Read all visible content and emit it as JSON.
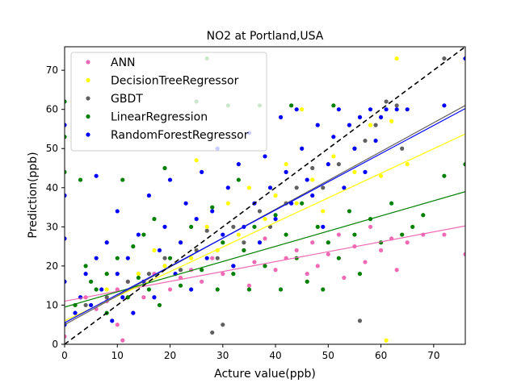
{
  "chart_data": {
    "type": "scatter",
    "title": "NO2 at Portland,USA",
    "xlabel": "Acture value(ppb)",
    "ylabel": "Prediction(ppb)",
    "xlim": [
      0,
      76
    ],
    "ylim": [
      0,
      76
    ],
    "xticks": [
      0,
      10,
      20,
      30,
      40,
      50,
      60,
      70
    ],
    "yticks": [
      0,
      10,
      20,
      30,
      40,
      50,
      60,
      70
    ],
    "grid": false,
    "legend_position": "top-left",
    "identity_line": {
      "from": [
        0,
        0
      ],
      "to": [
        76,
        76
      ],
      "color": "#000000",
      "style": "dashed"
    },
    "series": [
      {
        "name": "ANN",
        "color": "#f069b4",
        "fit": {
          "intercept": 11.0,
          "slope": 0.253
        },
        "points": [
          [
            0,
            2
          ],
          [
            2,
            10
          ],
          [
            4,
            12
          ],
          [
            6,
            9
          ],
          [
            8,
            11
          ],
          [
            10,
            5
          ],
          [
            10,
            14
          ],
          [
            11,
            1
          ],
          [
            12,
            16
          ],
          [
            13,
            8
          ],
          [
            15,
            12
          ],
          [
            17,
            18
          ],
          [
            19,
            20
          ],
          [
            20,
            14
          ],
          [
            22,
            17
          ],
          [
            24,
            19
          ],
          [
            26,
            16
          ],
          [
            28,
            22
          ],
          [
            30,
            18
          ],
          [
            32,
            20
          ],
          [
            34,
            24
          ],
          [
            35,
            15
          ],
          [
            36,
            21
          ],
          [
            38,
            27
          ],
          [
            40,
            19
          ],
          [
            42,
            22
          ],
          [
            44,
            24
          ],
          [
            46,
            18
          ],
          [
            47,
            26
          ],
          [
            48,
            20
          ],
          [
            50,
            23
          ],
          [
            52,
            28
          ],
          [
            53,
            17
          ],
          [
            55,
            25
          ],
          [
            57,
            21
          ],
          [
            58,
            30
          ],
          [
            60,
            24
          ],
          [
            62,
            27
          ],
          [
            63,
            19
          ],
          [
            65,
            26
          ],
          [
            68,
            28
          ],
          [
            72,
            28
          ],
          [
            76,
            23
          ]
        ]
      },
      {
        "name": "DecisionTreeRegressor",
        "color": "#ffff00",
        "fit": {
          "intercept": 6.0,
          "slope": 0.628
        },
        "points": [
          [
            2,
            8
          ],
          [
            5,
            10
          ],
          [
            8,
            14
          ],
          [
            12,
            12
          ],
          [
            14,
            18
          ],
          [
            17,
            24
          ],
          [
            19,
            20
          ],
          [
            22,
            26
          ],
          [
            24,
            22
          ],
          [
            25,
            47
          ],
          [
            27,
            30
          ],
          [
            29,
            24
          ],
          [
            31,
            36
          ],
          [
            33,
            28
          ],
          [
            35,
            40
          ],
          [
            38,
            32
          ],
          [
            40,
            38
          ],
          [
            42,
            46
          ],
          [
            44,
            36
          ],
          [
            45,
            60
          ],
          [
            47,
            42
          ],
          [
            49,
            34
          ],
          [
            51,
            48
          ],
          [
            53,
            40
          ],
          [
            55,
            44
          ],
          [
            58,
            56
          ],
          [
            60,
            43
          ],
          [
            61,
            1
          ],
          [
            62,
            57
          ],
          [
            63,
            73
          ],
          [
            65,
            46
          ]
        ]
      },
      {
        "name": "GBDT",
        "color": "#606060",
        "fit": {
          "intercept": 5.0,
          "slope": 0.737
        },
        "points": [
          [
            4,
            10
          ],
          [
            8,
            12
          ],
          [
            12,
            16
          ],
          [
            16,
            18
          ],
          [
            19,
            22
          ],
          [
            22,
            19
          ],
          [
            25,
            24
          ],
          [
            27,
            29
          ],
          [
            28,
            3
          ],
          [
            29,
            22
          ],
          [
            30,
            5
          ],
          [
            32,
            30
          ],
          [
            34,
            26
          ],
          [
            37,
            34
          ],
          [
            39,
            30
          ],
          [
            42,
            36
          ],
          [
            44,
            40
          ],
          [
            47,
            45
          ],
          [
            49,
            40
          ],
          [
            52,
            46
          ],
          [
            55,
            50
          ],
          [
            56,
            6
          ],
          [
            57,
            52
          ],
          [
            59,
            56
          ],
          [
            61,
            62
          ],
          [
            63,
            61
          ],
          [
            64,
            50
          ],
          [
            72,
            73
          ]
        ]
      },
      {
        "name": "LinearRegression",
        "color": "#008000",
        "fit": {
          "intercept": 9.5,
          "slope": 0.388
        },
        "points": [
          [
            0,
            44
          ],
          [
            0,
            53
          ],
          [
            0,
            62
          ],
          [
            2,
            10
          ],
          [
            3,
            42
          ],
          [
            4,
            20
          ],
          [
            5,
            16
          ],
          [
            6,
            14
          ],
          [
            8,
            8
          ],
          [
            8,
            18
          ],
          [
            10,
            22
          ],
          [
            11,
            42
          ],
          [
            12,
            12
          ],
          [
            13,
            25
          ],
          [
            14,
            17
          ],
          [
            15,
            28
          ],
          [
            16,
            14
          ],
          [
            17,
            32
          ],
          [
            18,
            10
          ],
          [
            19,
            45
          ],
          [
            20,
            22
          ],
          [
            22,
            15
          ],
          [
            24,
            30
          ],
          [
            25,
            62
          ],
          [
            26,
            19
          ],
          [
            27,
            73
          ],
          [
            28,
            35
          ],
          [
            29,
            14
          ],
          [
            30,
            26
          ],
          [
            31,
            61
          ],
          [
            32,
            18
          ],
          [
            33,
            42
          ],
          [
            34,
            24
          ],
          [
            35,
            14
          ],
          [
            36,
            30
          ],
          [
            37,
            61
          ],
          [
            38,
            20
          ],
          [
            40,
            33
          ],
          [
            41,
            14
          ],
          [
            42,
            28
          ],
          [
            43,
            61
          ],
          [
            44,
            22
          ],
          [
            45,
            36
          ],
          [
            46,
            16
          ],
          [
            48,
            30
          ],
          [
            49,
            14
          ],
          [
            50,
            26
          ],
          [
            51,
            61
          ],
          [
            52,
            22
          ],
          [
            54,
            34
          ],
          [
            55,
            28
          ],
          [
            56,
            18
          ],
          [
            58,
            32
          ],
          [
            60,
            26
          ],
          [
            62,
            36
          ],
          [
            64,
            28
          ],
          [
            66,
            30
          ],
          [
            68,
            33
          ],
          [
            72,
            43
          ],
          [
            76,
            46
          ]
        ]
      },
      {
        "name": "RandomForestRegressor",
        "color": "#0000ff",
        "fit": {
          "intercept": 5.5,
          "slope": 0.72
        },
        "points": [
          [
            0,
            5
          ],
          [
            0,
            16
          ],
          [
            0,
            27
          ],
          [
            0,
            38
          ],
          [
            0,
            56
          ],
          [
            2,
            8
          ],
          [
            3,
            12
          ],
          [
            4,
            18
          ],
          [
            5,
            10
          ],
          [
            6,
            22
          ],
          [
            6,
            43
          ],
          [
            7,
            14
          ],
          [
            8,
            26
          ],
          [
            9,
            6
          ],
          [
            10,
            18
          ],
          [
            10,
            34
          ],
          [
            11,
            12
          ],
          [
            12,
            22
          ],
          [
            13,
            8
          ],
          [
            14,
            28
          ],
          [
            15,
            16
          ],
          [
            16,
            38
          ],
          [
            17,
            12
          ],
          [
            18,
            24
          ],
          [
            19,
            30
          ],
          [
            20,
            42
          ],
          [
            21,
            18
          ],
          [
            22,
            26
          ],
          [
            23,
            36
          ],
          [
            24,
            14
          ],
          [
            25,
            32
          ],
          [
            26,
            44
          ],
          [
            27,
            22
          ],
          [
            28,
            34
          ],
          [
            29,
            50
          ],
          [
            30,
            28
          ],
          [
            31,
            40
          ],
          [
            32,
            20
          ],
          [
            33,
            46
          ],
          [
            34,
            30
          ],
          [
            35,
            54
          ],
          [
            36,
            36
          ],
          [
            37,
            26
          ],
          [
            38,
            48
          ],
          [
            39,
            40
          ],
          [
            40,
            32
          ],
          [
            41,
            58
          ],
          [
            42,
            44
          ],
          [
            43,
            36
          ],
          [
            44,
            60
          ],
          [
            45,
            50
          ],
          [
            46,
            42
          ],
          [
            47,
            38
          ],
          [
            48,
            56
          ],
          [
            49,
            30
          ],
          [
            50,
            46
          ],
          [
            51,
            53
          ],
          [
            52,
            60
          ],
          [
            53,
            40
          ],
          [
            54,
            56
          ],
          [
            55,
            50
          ],
          [
            56,
            58
          ],
          [
            57,
            44
          ],
          [
            58,
            60
          ],
          [
            59,
            52
          ],
          [
            60,
            58
          ],
          [
            61,
            60
          ],
          [
            63,
            60
          ],
          [
            65,
            60
          ],
          [
            72,
            61
          ],
          [
            76,
            73
          ]
        ]
      }
    ]
  }
}
